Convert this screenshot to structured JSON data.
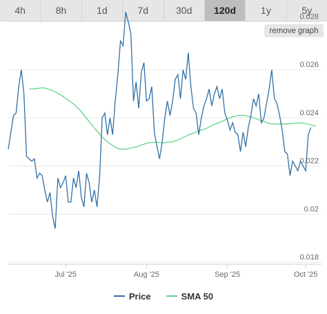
{
  "tabs": [
    {
      "label": "4h",
      "active": false
    },
    {
      "label": "8h",
      "active": false
    },
    {
      "label": "1d",
      "active": false
    },
    {
      "label": "7d",
      "active": false
    },
    {
      "label": "30d",
      "active": false
    },
    {
      "label": "120d",
      "active": true
    },
    {
      "label": "1y",
      "active": false
    },
    {
      "label": "5y",
      "active": false
    }
  ],
  "remove_graph_label": "remove graph",
  "colors": {
    "price": "#2f6fa6",
    "sma": "#5fd38a"
  },
  "chart_data": {
    "type": "line",
    "x_tick_labels": [
      "Jul '25",
      "Aug '25",
      "Sep '25",
      "Oct '25"
    ],
    "x_tick_day_index": [
      22,
      53,
      84,
      114
    ],
    "x_range": [
      0,
      119
    ],
    "ylim": [
      0.018,
      0.0285
    ],
    "y_ticks": [
      0.018,
      0.02,
      0.022,
      0.024,
      0.026,
      0.028
    ],
    "y_tick_labels": [
      "0.018",
      "0.02",
      "0.022",
      "0.024",
      "0.026",
      "0.028"
    ],
    "grid": true,
    "legend_position": "bottom",
    "series": [
      {
        "name": "Price",
        "values": [
          0.0227,
          0.0234,
          0.0241,
          0.0242,
          0.0253,
          0.026,
          0.025,
          0.0224,
          0.0223,
          0.0222,
          0.0223,
          0.0215,
          0.0217,
          0.0216,
          0.021,
          0.0205,
          0.0209,
          0.0199,
          0.0194,
          0.0215,
          0.0211,
          0.0213,
          0.0216,
          0.0205,
          0.0205,
          0.0215,
          0.0211,
          0.0218,
          0.0207,
          0.0203,
          0.0217,
          0.0213,
          0.0205,
          0.021,
          0.0203,
          0.0215,
          0.024,
          0.0242,
          0.0233,
          0.024,
          0.0233,
          0.0247,
          0.0258,
          0.0272,
          0.027,
          0.0284,
          0.028,
          0.0275,
          0.0247,
          0.0255,
          0.0244,
          0.0259,
          0.0263,
          0.0247,
          0.0248,
          0.0253,
          0.0234,
          0.0228,
          0.0223,
          0.023,
          0.024,
          0.0247,
          0.0241,
          0.0247,
          0.0256,
          0.0258,
          0.0248,
          0.026,
          0.0256,
          0.0267,
          0.0253,
          0.0244,
          0.0242,
          0.0233,
          0.024,
          0.0245,
          0.0248,
          0.0252,
          0.0245,
          0.025,
          0.0253,
          0.0248,
          0.0252,
          0.0242,
          0.0239,
          0.0235,
          0.0238,
          0.0234,
          0.0233,
          0.0226,
          0.0234,
          0.0228,
          0.0236,
          0.0241,
          0.0248,
          0.0245,
          0.025,
          0.0238,
          0.024,
          0.0246,
          0.0252,
          0.026,
          0.0248,
          0.0246,
          0.0241,
          0.0235,
          0.0226,
          0.0225,
          0.0216,
          0.0222,
          0.022,
          0.0218,
          0.0222,
          0.022,
          0.0218,
          0.0233,
          0.0236
        ],
        "color": "#2f6fa6"
      },
      {
        "name": "SMA 50",
        "values": [
          0.0252,
          0.0252,
          0.02521,
          0.02522,
          0.02524,
          0.02525,
          0.02524,
          0.02521,
          0.02517,
          0.02513,
          0.02508,
          0.02502,
          0.02496,
          0.02489,
          0.02481,
          0.02473,
          0.02466,
          0.02458,
          0.02448,
          0.02438,
          0.02426,
          0.02412,
          0.02398,
          0.02384,
          0.02372,
          0.02358,
          0.02345,
          0.02333,
          0.02321,
          0.0231,
          0.02301,
          0.02292,
          0.02286,
          0.02279,
          0.02273,
          0.02271,
          0.0227,
          0.0227,
          0.02272,
          0.02275,
          0.02277,
          0.02279,
          0.02283,
          0.02287,
          0.02291,
          0.02294,
          0.02297,
          0.02297,
          0.02298,
          0.02298,
          0.02298,
          0.02297,
          0.02296,
          0.02299,
          0.023,
          0.02301,
          0.02305,
          0.02308,
          0.02314,
          0.02319,
          0.02323,
          0.02329,
          0.02333,
          0.02336,
          0.02342,
          0.02346,
          0.0235,
          0.02353,
          0.02357,
          0.02362,
          0.02369,
          0.02373,
          0.02378,
          0.02381,
          0.02386,
          0.02391,
          0.02397,
          0.024,
          0.02405,
          0.02407,
          0.0241,
          0.0241,
          0.02411,
          0.02409,
          0.02407,
          0.02405,
          0.024,
          0.02397,
          0.02392,
          0.02388,
          0.02385,
          0.02381,
          0.02377,
          0.02375,
          0.02375,
          0.02374,
          0.02374,
          0.02375,
          0.02375,
          0.02375,
          0.02376,
          0.02377,
          0.02378,
          0.02379,
          0.02379,
          0.02378,
          0.02376,
          0.02374,
          0.02371,
          0.02369,
          0.02366
        ],
        "start_index": 8,
        "color": "#5fd38a"
      }
    ]
  }
}
